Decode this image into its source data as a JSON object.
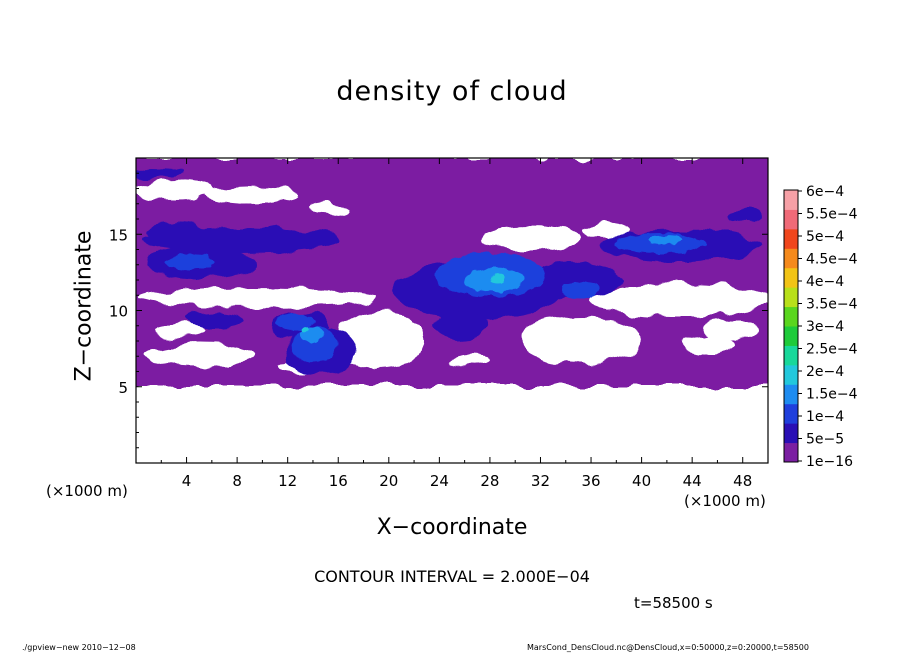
{
  "chart_data": {
    "type": "heatmap",
    "title": "density of cloud",
    "xlabel": "X−coordinate",
    "ylabel": "Z−coordinate",
    "x_unit_left": "(×1000 m)",
    "x_unit_right": "(×1000 m)",
    "xlim": [
      0,
      50
    ],
    "ylim": [
      0,
      20
    ],
    "xticks": [
      4,
      8,
      12,
      16,
      20,
      24,
      28,
      32,
      36,
      40,
      44,
      48
    ],
    "xtick_labels": [
      "4",
      "8",
      "12",
      "16",
      "20",
      "24",
      "28",
      "32",
      "36",
      "40",
      "44",
      "48"
    ],
    "yticks": [
      5,
      10,
      15
    ],
    "ytick_labels": [
      "5",
      "10",
      "15"
    ],
    "colorbar": {
      "levels": [
        "1e−16",
        "5e−5",
        "1e−4",
        "1.5e−4",
        "2e−4",
        "2.5e−4",
        "3e−4",
        "3.5e−4",
        "4e−4",
        "4.5e−4",
        "5e−4",
        "5.5e−4",
        "6e−4"
      ],
      "colors": [
        "#7b1fa2",
        "#2a0fb5",
        "#1f3fdc",
        "#1e8cf0",
        "#22c8dc",
        "#18d89a",
        "#1ecb3a",
        "#5ad61e",
        "#b8e01a",
        "#f2c416",
        "#f58a1c",
        "#f0461c",
        "#f06a78",
        "#f6a0a6"
      ]
    },
    "contour_interval": "CONTOUR INTERVAL = 2.000E−04",
    "time_label": "t=58500 s"
  },
  "footer": {
    "left": "./gpview−new   2010−12−08",
    "right": "MarsCond_DensCloud.nc@DensCloud,x=0:50000,z=0:20000,t=58500"
  }
}
